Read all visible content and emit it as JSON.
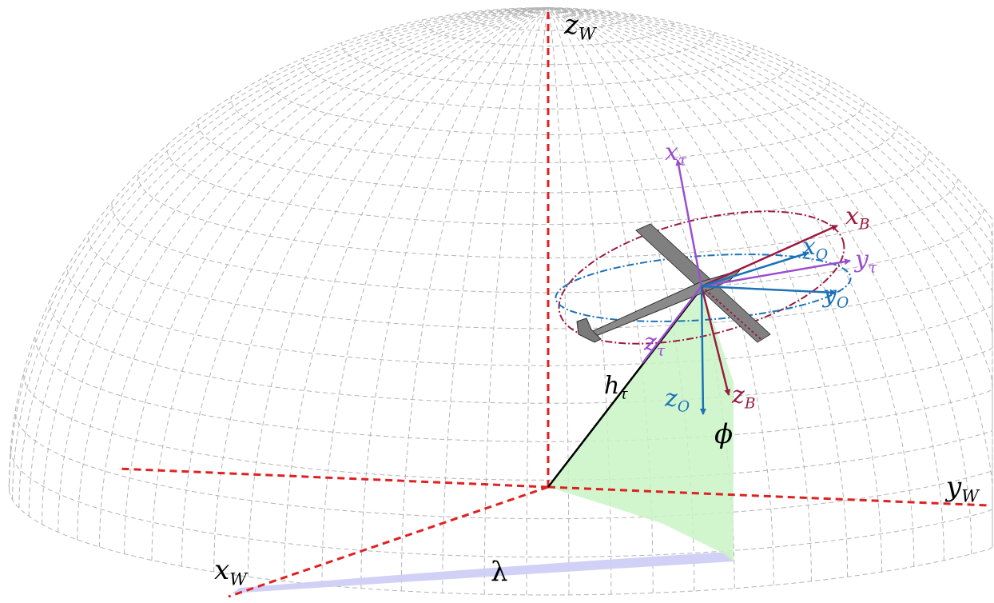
{
  "labels": {
    "zw": {
      "main": "z",
      "sub": "W"
    },
    "yw": {
      "main": "y",
      "sub": "W"
    },
    "xw": {
      "main": "x",
      "sub": "W"
    },
    "xtau": {
      "main": "x",
      "sub": "τ"
    },
    "ytau": {
      "main": "y",
      "sub": "τ"
    },
    "ztau": {
      "main": "z",
      "sub": "τ"
    },
    "xb": {
      "main": "x",
      "sub": "B"
    },
    "zb": {
      "main": "z",
      "sub": "B"
    },
    "xo": {
      "main": "x",
      "sub": "O"
    },
    "yo": {
      "main": "y",
      "sub": "O"
    },
    "zo": {
      "main": "z",
      "sub": "O"
    },
    "htau": {
      "main": "h",
      "sub": "τ"
    },
    "phi": "ϕ",
    "lambda": "λ"
  },
  "colors": {
    "world_axes": "#e02020",
    "sphere_grid": "#b4b4b4",
    "tether_frame": "#9a4fd0",
    "body_frame": "#9b1b40",
    "orbit_frame": "#1b72b8",
    "phi_wedge": "#c9f5c4",
    "lambda_arc": "#cfcff7",
    "tether": "#000000",
    "aircraft": "#7a7a7a"
  }
}
